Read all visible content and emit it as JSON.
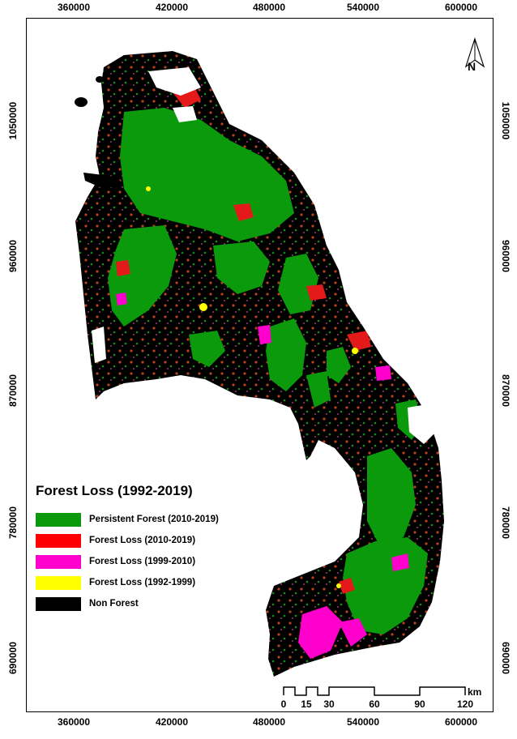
{
  "map": {
    "legend": {
      "title": "Forest Loss (1992-2019)",
      "items": [
        {
          "label": "Persistent Forest (2010-2019)",
          "color": "#0b9a0b"
        },
        {
          "label": "Forest Loss (2010-2019)",
          "color": "#ff0000"
        },
        {
          "label": "Forest Loss (1999-2010)",
          "color": "#ff00cc"
        },
        {
          "label": "Forest Loss (1992-1999)",
          "color": "#ffff00"
        },
        {
          "label": "Non Forest",
          "color": "#000000"
        }
      ]
    },
    "x_ticks": [
      "360000",
      "420000",
      "480000",
      "540000",
      "600000"
    ],
    "y_ticks": [
      "1050000",
      "960000",
      "870000",
      "780000",
      "690000"
    ],
    "north_arrow": {
      "label": "N",
      "icon": "north-arrow-icon"
    },
    "scale_bar": {
      "unit": "km",
      "labels": [
        "0",
        "15",
        "30",
        "60",
        "90",
        "120"
      ]
    }
  }
}
